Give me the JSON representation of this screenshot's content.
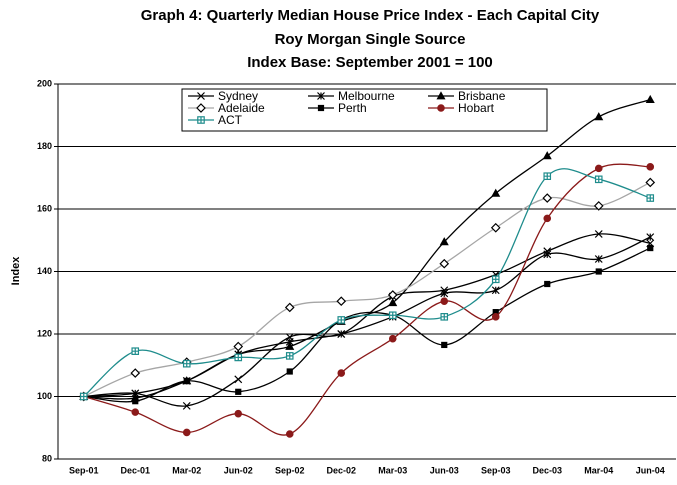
{
  "chart_data": {
    "type": "line",
    "title": [
      "Graph 4: Quarterly Median House Price Index - Each Capital City",
      "Roy Morgan Single Source",
      "Index Base: September 2001 = 100"
    ],
    "y_label": "Index",
    "categories": [
      "Sep-01",
      "Dec-01",
      "Mar-02",
      "Jun-02",
      "Sep-02",
      "Dec-02",
      "Mar-03",
      "Jun-03",
      "Sep-03",
      "Dec-03",
      "Mar-04",
      "Jun-04"
    ],
    "ylim": [
      80,
      200
    ],
    "yticks": [
      80,
      100,
      120,
      140,
      160,
      180,
      200
    ],
    "grid": true,
    "legend": "top-left",
    "series": [
      {
        "name": "Sydney",
        "color": "#000000",
        "marker": "x",
        "values": [
          100,
          101,
          97,
          105.5,
          119,
          120,
          132,
          134,
          139,
          146.5,
          152,
          149
        ]
      },
      {
        "name": "Melbourne",
        "color": "#000000",
        "marker": "star",
        "values": [
          100,
          101,
          105,
          113.5,
          117.5,
          120,
          125.5,
          133,
          134,
          145.5,
          144,
          151
        ]
      },
      {
        "name": "Brisbane",
        "color": "#000000",
        "marker": "triangle",
        "values": [
          100,
          99.5,
          105,
          113.5,
          116,
          124,
          130,
          149.5,
          165,
          177,
          189.5,
          195
        ]
      },
      {
        "name": "Adelaide",
        "color": "#a6a6a6",
        "marker": "diamond",
        "values": [
          100,
          107.5,
          111,
          116,
          128.5,
          130.5,
          132.5,
          142.5,
          154,
          163.5,
          161,
          168.5
        ]
      },
      {
        "name": "Perth",
        "color": "#000000",
        "marker": "square",
        "values": [
          100,
          98.5,
          105,
          101.5,
          108,
          124.5,
          126,
          116.5,
          127,
          136,
          140,
          147.5
        ]
      },
      {
        "name": "Hobart",
        "color": "#8b1a1a",
        "marker": "circle",
        "values": [
          100,
          95,
          88.5,
          94.5,
          88,
          107.5,
          118.5,
          130.5,
          125.5,
          157,
          173,
          173.5
        ]
      },
      {
        "name": "ACT",
        "color": "#1e8c8c",
        "marker": "box-plus",
        "values": [
          100,
          114.5,
          110.5,
          112.5,
          113,
          124.5,
          126,
          125.5,
          137.5,
          170.5,
          169.5,
          163.5
        ]
      }
    ]
  }
}
